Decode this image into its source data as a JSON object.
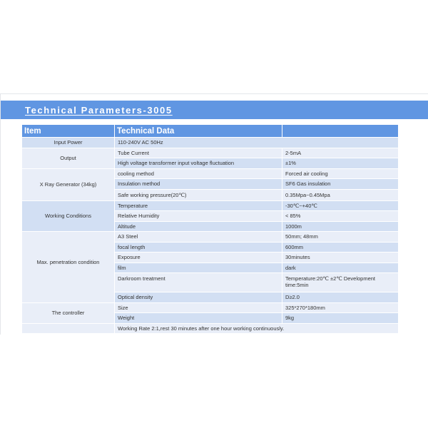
{
  "title": "Technical Parameters-3005",
  "header": {
    "item": "Item",
    "data": "Technical Data",
    "extra": ""
  },
  "colors": {
    "accent": "#6096e2",
    "row_light": "#e9eef8",
    "row_dark": "#d2dff3"
  },
  "groups": {
    "input_power": {
      "item": "Input Power",
      "value": "110-240V AC 50Hz"
    },
    "output": {
      "item": "Output",
      "rows": [
        {
          "param": "Tube Current",
          "value": "2-5mA"
        },
        {
          "param": "High voltage transformer input voltage fluctuation",
          "value": "±1%"
        }
      ]
    },
    "generator": {
      "item": "X Ray Generator (34kg)",
      "rows": [
        {
          "param": "cooling method",
          "value": "Forced air cooling"
        },
        {
          "param": "Insulation method",
          "value": "SF6 Gas insulation"
        },
        {
          "param": "Safe working pressure(20℃)",
          "value": "0.35Mpa~0.45Mpa"
        }
      ]
    },
    "conditions": {
      "item": "Working Conditions",
      "rows": [
        {
          "param": "Temperature",
          "value": "-30℃~+40℃"
        },
        {
          "param": "Relative Humidity",
          "value": "< 85%"
        },
        {
          "param": "Altitude",
          "value": "1000m"
        }
      ]
    },
    "penetration": {
      "item": "Max. penetration condition",
      "rows": [
        {
          "param": "A3 Steel",
          "value": "50mm; 48mm"
        },
        {
          "param": "focal length",
          "value": "600mm"
        },
        {
          "param": "Exposure",
          "value": "30minutes"
        },
        {
          "param": "film",
          "value": "dark"
        },
        {
          "param": "Darkroom treatment",
          "value": "Temperature:20℃ ±2℃ Development time:5min"
        },
        {
          "param": "Optical density",
          "value": "D≥2.0"
        }
      ]
    },
    "controller": {
      "item": "The controller",
      "rows": [
        {
          "param": "Size",
          "value": "325*270*180mm"
        },
        {
          "param": "Weight",
          "value": "9kg"
        }
      ]
    },
    "note": "Working Rate 2:1,rest 30 minutes after one hour working continuously."
  }
}
